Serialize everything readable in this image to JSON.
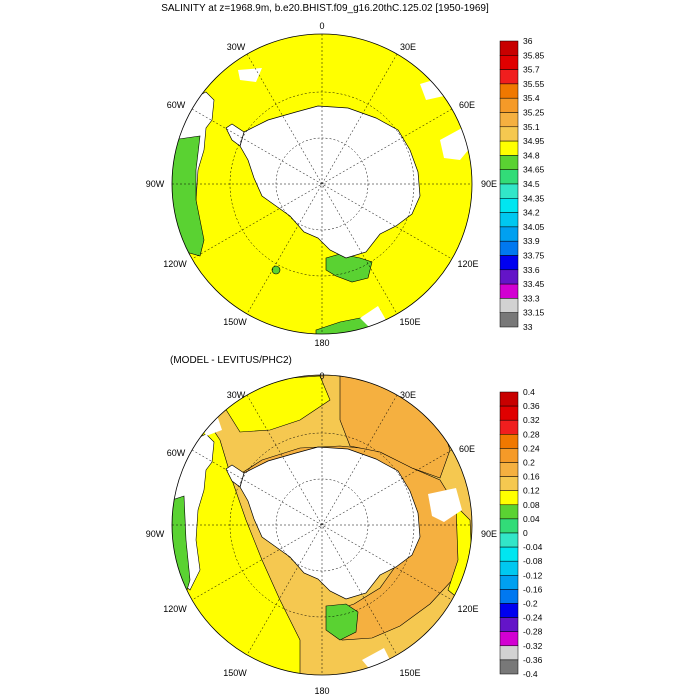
{
  "map_top": {
    "title": "SALINITY at z=1968.9m, b.e20.BHIST.f09_g16.20thC.125.02 [1950-1969]",
    "lon_labels": [
      "0",
      "30E",
      "60E",
      "90E",
      "120E",
      "150E",
      "180",
      "150W",
      "120W",
      "90W",
      "60W",
      "30W"
    ],
    "colorbar": {
      "labels": [
        "36",
        "35.85",
        "35.7",
        "35.55",
        "35.4",
        "35.25",
        "35.1",
        "34.95",
        "34.8",
        "34.65",
        "34.5",
        "34.35",
        "34.2",
        "34.05",
        "33.9",
        "33.75",
        "33.6",
        "33.45",
        "33.3",
        "33.15",
        "33"
      ],
      "colors": [
        "#c80000",
        "#e00000",
        "#f01e1e",
        "#f07800",
        "#f59a28",
        "#f5b040",
        "#f5c850",
        "#ffff00",
        "#5ad232",
        "#32dc78",
        "#32e6c8",
        "#00e6f0",
        "#00c8f0",
        "#00a0f0",
        "#0078f0",
        "#0000f0",
        "#6414c8",
        "#d200d2",
        "#d2d2d2",
        "#787878"
      ]
    }
  },
  "map_bottom": {
    "title": "(MODEL - LEVITUS/PHC2)",
    "lon_labels": [
      "0",
      "30E",
      "60E",
      "90E",
      "120E",
      "150E",
      "180",
      "150W",
      "120W",
      "90W",
      "60W",
      "30W"
    ],
    "colorbar": {
      "labels": [
        "0.4",
        "0.36",
        "0.32",
        "0.28",
        "0.24",
        "0.2",
        "0.16",
        "0.12",
        "0.08",
        "0.04",
        "0",
        "-0.04",
        "-0.08",
        "-0.12",
        "-0.16",
        "-0.2",
        "-0.24",
        "-0.28",
        "-0.32",
        "-0.36",
        "-0.4"
      ],
      "colors": [
        "#c80000",
        "#e00000",
        "#f01e1e",
        "#f07800",
        "#f59a28",
        "#f5b040",
        "#f5c850",
        "#ffff00",
        "#5ad232",
        "#32dc78",
        "#32e6c8",
        "#00e6f0",
        "#00c8f0",
        "#00a0f0",
        "#0078f0",
        "#0000f0",
        "#6414c8",
        "#d200d2",
        "#d2d2d2",
        "#787878"
      ]
    }
  },
  "colors": {
    "ocean_yellow": "#ffff00",
    "ocean_orange_light": "#f5c850",
    "ocean_orange": "#f5b040",
    "green": "#5ad232",
    "land": "#ffffff",
    "coast": "#000000"
  }
}
